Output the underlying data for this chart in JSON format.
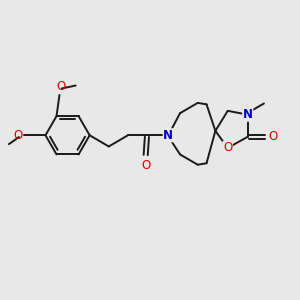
{
  "bg_color": "#e8e8e8",
  "bond_color": "#1a1a1a",
  "oxygen_color": "#dd0000",
  "nitrogen_color": "#0000cc",
  "line_width": 1.4,
  "font_size": 8.5,
  "figsize": [
    3.0,
    3.0
  ],
  "dpi": 100,
  "xlim": [
    0,
    10
  ],
  "ylim": [
    0,
    10
  ]
}
